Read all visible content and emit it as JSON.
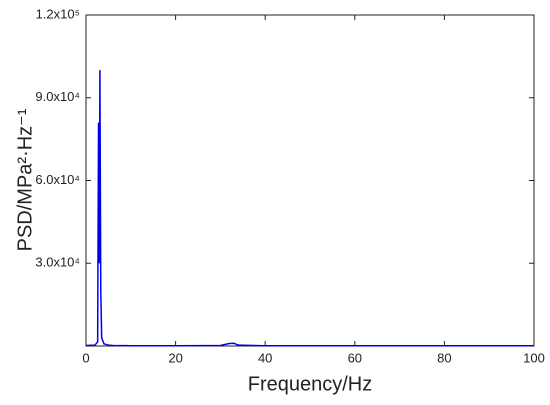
{
  "chart_data": {
    "type": "line",
    "x_label": "Frequency/Hz",
    "y_label": "PSD/MPa²·Hz⁻¹",
    "series": [
      {
        "name": "PSD",
        "color": "#0000ee",
        "x": [
          0,
          2.0,
          2.6,
          2.8,
          3.0,
          3.1,
          3.3,
          3.5,
          4.0,
          5,
          6,
          10,
          20,
          30,
          32,
          33,
          34,
          40,
          60,
          80,
          100
        ],
        "values": [
          200,
          300,
          1500,
          81000,
          30000,
          100000,
          20000,
          3000,
          800,
          300,
          200,
          100,
          100,
          200,
          900,
          1000,
          300,
          100,
          100,
          100,
          100
        ]
      }
    ],
    "xlim": [
      0,
      100
    ],
    "xticks": [
      0,
      20,
      40,
      60,
      80,
      100
    ],
    "ylim": [
      0,
      120000
    ],
    "yticks": [
      {
        "value": 30000,
        "label": "3.0x10⁴"
      },
      {
        "value": 60000,
        "label": "6.0x10⁴"
      },
      {
        "value": 90000,
        "label": "9.0x10⁴"
      },
      {
        "value": 120000,
        "label": "1.2x10⁵"
      }
    ]
  }
}
